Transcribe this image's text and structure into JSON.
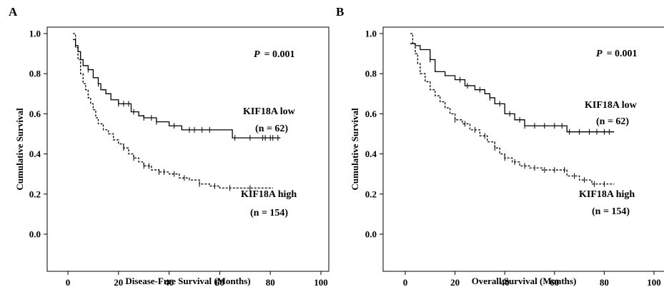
{
  "chart_data": [
    {
      "type": "line",
      "subtype": "kaplan-meier",
      "panel": "A",
      "xlabel": "Disease-Free Survival (Months)",
      "ylabel": "Cumulative Survival",
      "xlim": [
        0,
        100
      ],
      "ylim": [
        0,
        1
      ],
      "xticks": [
        0,
        20,
        40,
        60,
        80,
        100
      ],
      "yticks": [
        "0.0",
        "0.2",
        "0.4",
        "0.6",
        "0.8",
        "1.0"
      ],
      "grid": false,
      "p_label": "P",
      "p_value": "= 0.001",
      "series": [
        {
          "label": "KIF18A low",
          "n_label": "(n = 62)",
          "style": "solid",
          "x": [
            2,
            3,
            4,
            5,
            6,
            8,
            10,
            12,
            13,
            15,
            17,
            20,
            25,
            28,
            30,
            35,
            40,
            45,
            55,
            65,
            84
          ],
          "y": [
            0.97,
            0.94,
            0.91,
            0.87,
            0.84,
            0.82,
            0.78,
            0.75,
            0.72,
            0.7,
            0.67,
            0.65,
            0.61,
            0.59,
            0.58,
            0.56,
            0.54,
            0.52,
            0.52,
            0.48,
            0.48
          ],
          "censor_x": [
            8,
            12,
            20,
            22,
            24,
            26,
            30,
            33,
            35,
            42,
            48,
            50,
            53,
            56,
            66,
            72,
            77,
            78,
            80,
            81,
            83
          ]
        },
        {
          "label": "KIF18A high",
          "n_label": "(n = 154)",
          "style": "dashed",
          "x": [
            2,
            3,
            4,
            5,
            6,
            7,
            8,
            9,
            10,
            11,
            12,
            14,
            16,
            18,
            20,
            22,
            24,
            26,
            28,
            30,
            33,
            36,
            40,
            44,
            48,
            52,
            56,
            60,
            65,
            81
          ],
          "y": [
            1.0,
            0.93,
            0.87,
            0.8,
            0.75,
            0.72,
            0.68,
            0.65,
            0.62,
            0.58,
            0.55,
            0.52,
            0.5,
            0.47,
            0.45,
            0.43,
            0.4,
            0.38,
            0.36,
            0.34,
            0.32,
            0.31,
            0.3,
            0.28,
            0.27,
            0.25,
            0.24,
            0.23,
            0.23,
            0.23
          ],
          "censor_x": [
            22,
            26,
            30,
            32,
            36,
            38,
            42,
            46,
            52,
            58,
            64,
            72
          ]
        }
      ]
    },
    {
      "type": "line",
      "subtype": "kaplan-meier",
      "panel": "B",
      "xlabel": "Overall Survival (Months)",
      "ylabel": "Cumulative Survival",
      "xlim": [
        0,
        100
      ],
      "ylim": [
        0,
        1
      ],
      "xticks": [
        0,
        20,
        40,
        60,
        80,
        100
      ],
      "yticks": [
        "0.0",
        "0.2",
        "0.4",
        "0.6",
        "0.8",
        "1.0"
      ],
      "grid": false,
      "p_label": "P",
      "p_value": "= 0.001",
      "series": [
        {
          "label": "KIF18A low",
          "n_label": "(n = 62)",
          "style": "solid",
          "x": [
            2,
            4,
            6,
            10,
            12,
            16,
            20,
            24,
            28,
            32,
            34,
            36,
            40,
            44,
            48,
            55,
            65,
            84
          ],
          "y": [
            0.95,
            0.94,
            0.92,
            0.87,
            0.81,
            0.79,
            0.77,
            0.74,
            0.72,
            0.7,
            0.68,
            0.65,
            0.6,
            0.57,
            0.54,
            0.54,
            0.51,
            0.51
          ],
          "censor_x": [
            10,
            22,
            25,
            30,
            34,
            38,
            42,
            46,
            48,
            52,
            56,
            60,
            63,
            66,
            70,
            74,
            77,
            80,
            82
          ]
        },
        {
          "label": "KIF18A high",
          "n_label": "(n = 154)",
          "style": "dashed",
          "x": [
            2,
            3,
            4,
            5,
            6,
            8,
            10,
            12,
            14,
            16,
            18,
            20,
            23,
            26,
            30,
            33,
            36,
            38,
            40,
            43,
            46,
            50,
            55,
            60,
            65,
            70,
            75,
            84
          ],
          "y": [
            1.0,
            0.95,
            0.9,
            0.85,
            0.8,
            0.76,
            0.72,
            0.69,
            0.66,
            0.63,
            0.6,
            0.57,
            0.55,
            0.52,
            0.49,
            0.46,
            0.43,
            0.4,
            0.38,
            0.36,
            0.34,
            0.33,
            0.32,
            0.32,
            0.29,
            0.27,
            0.25,
            0.25
          ],
          "censor_x": [
            20,
            24,
            28,
            32,
            36,
            40,
            44,
            48,
            52,
            56,
            60,
            64,
            68,
            72,
            76,
            80
          ]
        }
      ]
    }
  ]
}
